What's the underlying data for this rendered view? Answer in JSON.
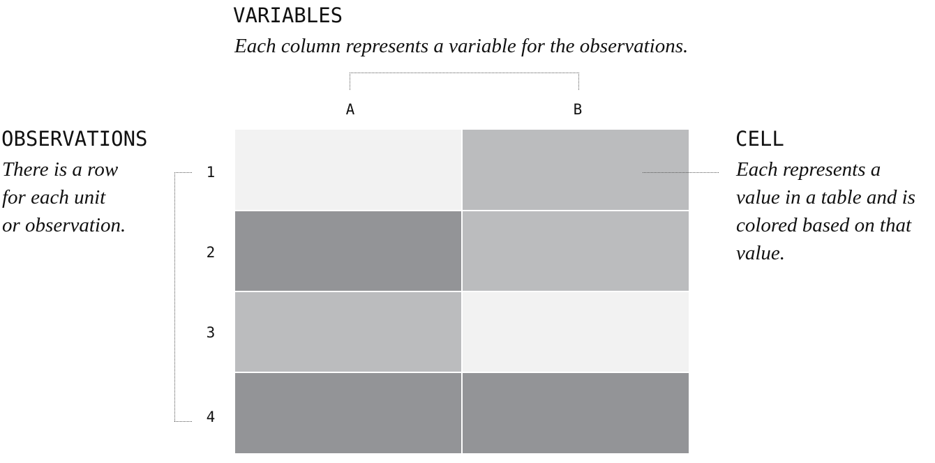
{
  "variables": {
    "heading": "VARIABLES",
    "description": "Each column represents a variable for the observations."
  },
  "observations": {
    "heading": "OBSERVATIONS",
    "description_lines": [
      "There is a row",
      "for each unit",
      "or observation."
    ]
  },
  "cell": {
    "heading": "CELL",
    "description_lines": [
      "Each represents a",
      "value in a table and is",
      "colored based on that",
      "value."
    ]
  },
  "columns": [
    "A",
    "B"
  ],
  "rows": [
    "1",
    "2",
    "3",
    "4"
  ],
  "cell_colors": [
    [
      "#f2f2f2",
      "#bbbcbe"
    ],
    [
      "#939497",
      "#bbbcbe"
    ],
    [
      "#bbbcbe",
      "#f2f2f2"
    ],
    [
      "#939497",
      "#939497"
    ]
  ]
}
